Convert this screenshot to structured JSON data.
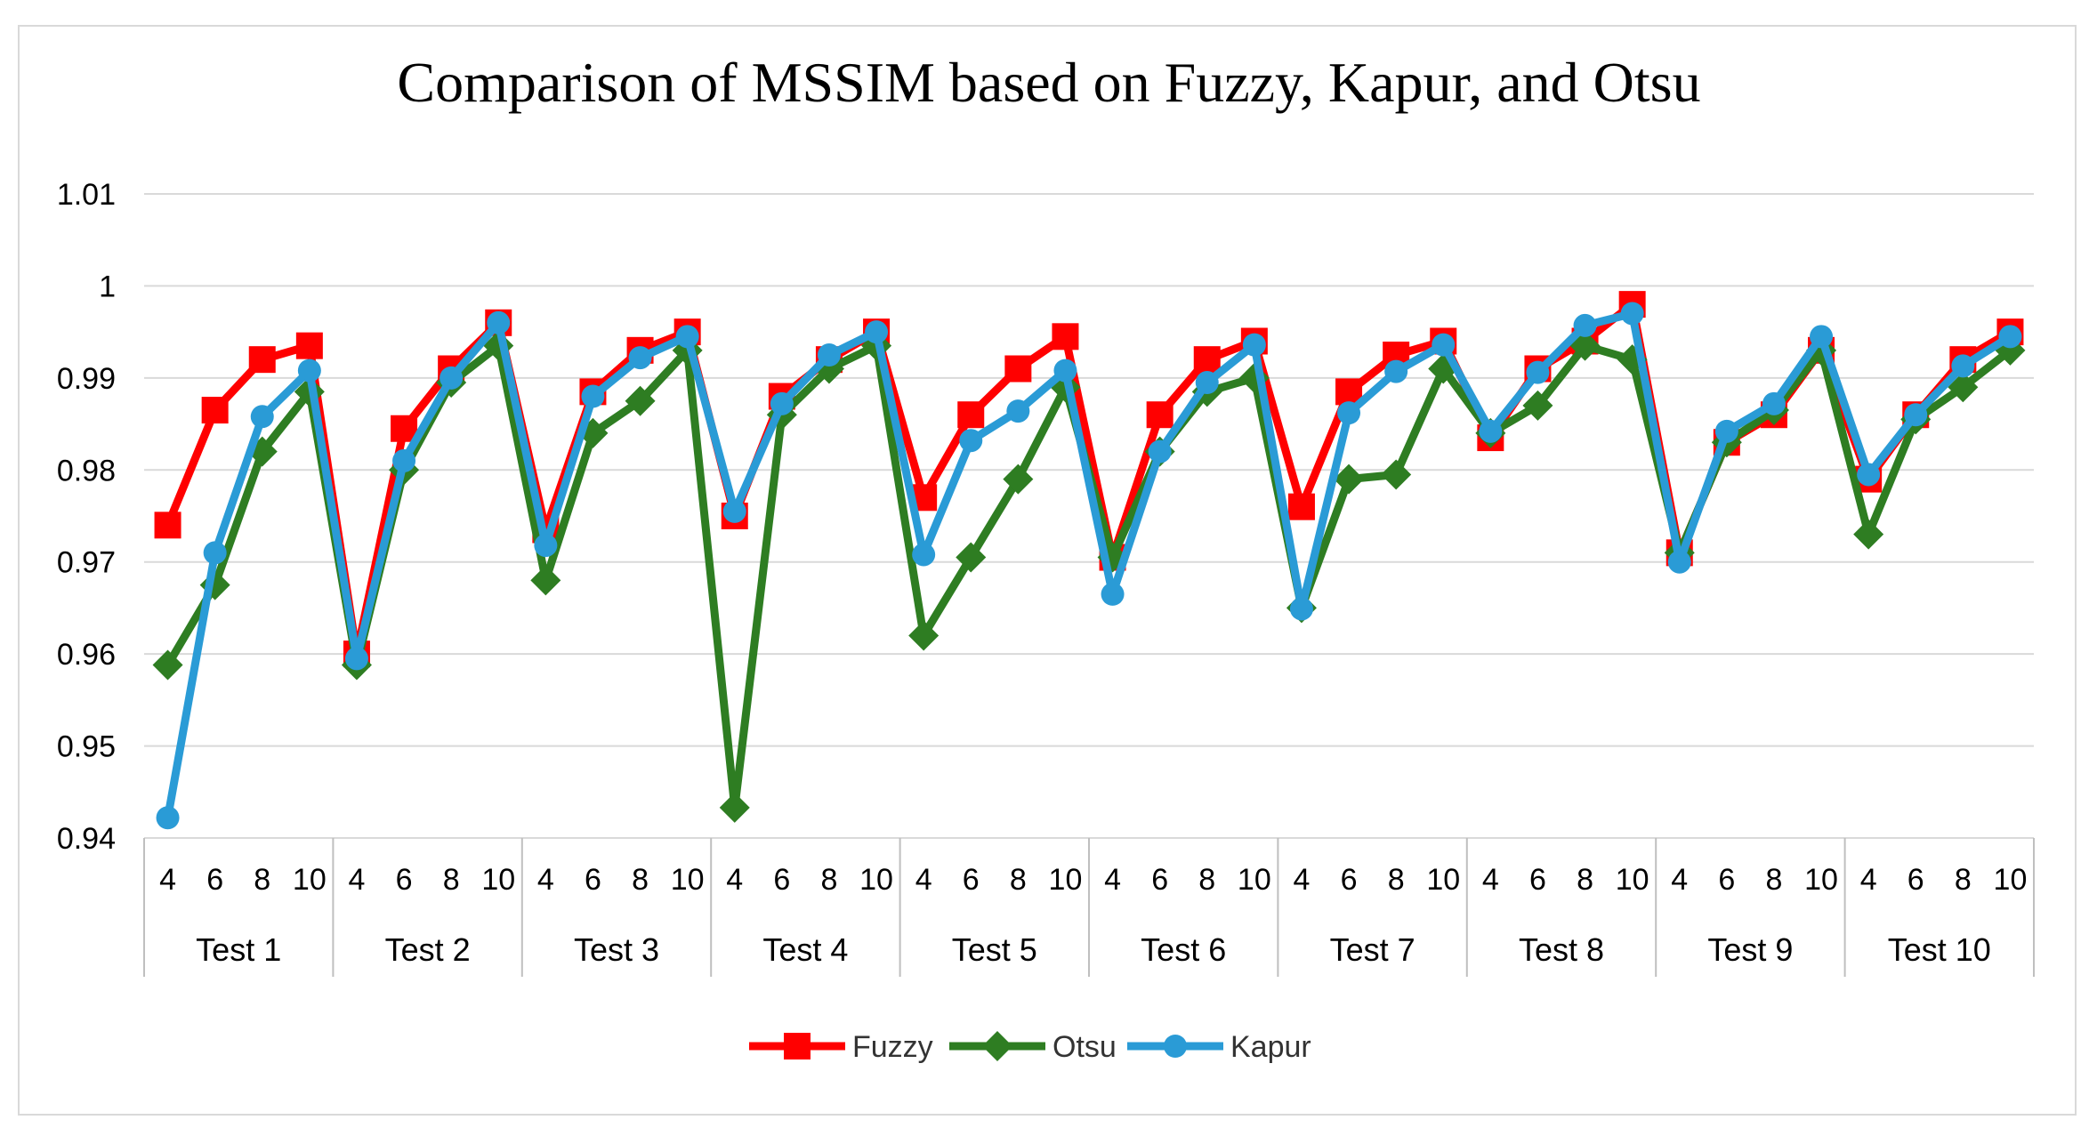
{
  "chart_data": {
    "type": "line",
    "title": "Comparison of MSSIM based on Fuzzy, Kapur, and Otsu",
    "xlabel": "",
    "ylabel": "",
    "ylim": [
      0.94,
      1.01
    ],
    "yticks": [
      "0.94",
      "0.95",
      "0.96",
      "0.97",
      "0.98",
      "0.99",
      "1",
      "1.01"
    ],
    "grid": true,
    "legend_position": "bottom",
    "groups": [
      "Test 1",
      "Test 2",
      "Test 3",
      "Test 4",
      "Test 5",
      "Test 6",
      "Test 7",
      "Test 8",
      "Test 9",
      "Test 10"
    ],
    "subcategories": [
      "4",
      "6",
      "8",
      "10"
    ],
    "series": [
      {
        "name": "Fuzzy",
        "color": "#ff0000",
        "marker": "square",
        "values": [
          0.974,
          0.9865,
          0.992,
          0.9935,
          0.96,
          0.9845,
          0.991,
          0.996,
          0.9735,
          0.9885,
          0.993,
          0.995,
          0.975,
          0.988,
          0.992,
          0.995,
          0.977,
          0.986,
          0.991,
          0.9945,
          0.9705,
          0.986,
          0.992,
          0.994,
          0.976,
          0.9885,
          0.9925,
          0.994,
          0.9835,
          0.991,
          0.994,
          0.998,
          0.971,
          0.983,
          0.986,
          0.993,
          0.979,
          0.986,
          0.992,
          0.995
        ]
      },
      {
        "name": "Otsu",
        "color": "#2e7d22",
        "marker": "diamond",
        "values": [
          0.9588,
          0.9675,
          0.982,
          0.9885,
          0.9588,
          0.98,
          0.9895,
          0.9935,
          0.968,
          0.984,
          0.9875,
          0.993,
          0.9433,
          0.986,
          0.991,
          0.9935,
          0.962,
          0.9705,
          0.979,
          0.989,
          0.9705,
          0.982,
          0.9885,
          0.99,
          0.965,
          0.979,
          0.9795,
          0.991,
          0.984,
          0.987,
          0.9935,
          0.992,
          0.971,
          0.983,
          0.9865,
          0.993,
          0.973,
          0.9855,
          0.989,
          0.993
        ]
      },
      {
        "name": "Kapur",
        "color": "#2a9bd6",
        "marker": "circle",
        "values": [
          0.9422,
          0.971,
          0.9858,
          0.9908,
          0.9595,
          0.981,
          0.99,
          0.996,
          0.9718,
          0.988,
          0.9922,
          0.9945,
          0.9755,
          0.9872,
          0.9925,
          0.995,
          0.9708,
          0.9832,
          0.9864,
          0.9908,
          0.9665,
          0.982,
          0.9895,
          0.9936,
          0.9649,
          0.9862,
          0.9907,
          0.9936,
          0.9842,
          0.9906,
          0.9957,
          0.997,
          0.97,
          0.9842,
          0.9872,
          0.9945,
          0.9795,
          0.986,
          0.9913,
          0.9945
        ]
      }
    ]
  }
}
